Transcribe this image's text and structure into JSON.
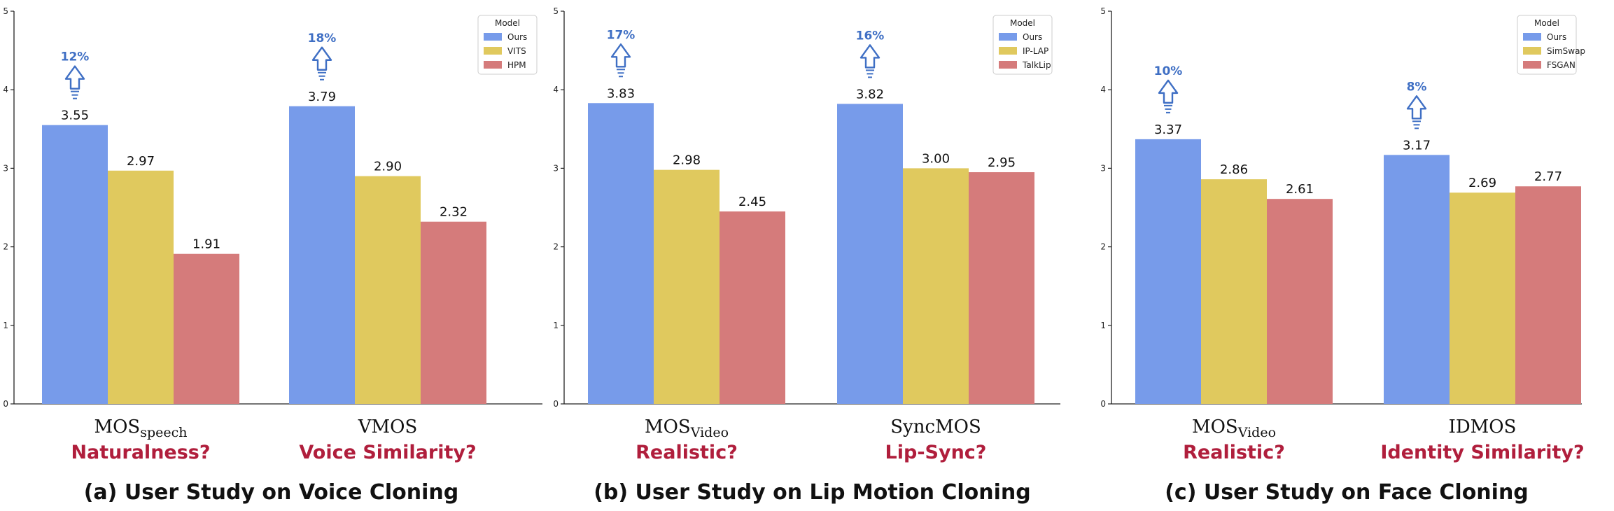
{
  "colors": {
    "ours": "#779bea",
    "second": "#e0c95e",
    "third": "#d57b7b",
    "arrow": "#3f6fc4",
    "question": "#b01e3c",
    "axis": "#222222"
  },
  "chart_data": [
    {
      "type": "bar",
      "caption": "(a) User Study on Voice Cloning",
      "ylim": [
        0,
        5
      ],
      "yticks": [
        "0",
        "1",
        "2",
        "3",
        "4",
        "5"
      ],
      "grid": false,
      "legend": {
        "title": "Model",
        "position": "top-right"
      },
      "categories": [
        {
          "base": "MOS",
          "sub": "speech",
          "question": "Naturalness?"
        },
        {
          "base": "VMOS",
          "sub": "",
          "question": "Voice Similarity?"
        }
      ],
      "series": [
        {
          "name": "Ours",
          "values": [
            3.55,
            3.79
          ],
          "labels": [
            "3.55",
            "3.79"
          ]
        },
        {
          "name": "VITS",
          "values": [
            2.97,
            2.9
          ],
          "labels": [
            "2.97",
            "2.90"
          ]
        },
        {
          "name": "HPM",
          "values": [
            1.91,
            2.32
          ],
          "labels": [
            "1.91",
            "2.32"
          ]
        }
      ],
      "improvements": [
        "12%",
        "18%"
      ]
    },
    {
      "type": "bar",
      "caption": "(b) User Study on Lip Motion Cloning",
      "ylim": [
        0,
        5
      ],
      "yticks": [
        "0",
        "1",
        "2",
        "3",
        "4",
        "5"
      ],
      "grid": false,
      "legend": {
        "title": "Model",
        "position": "top-right"
      },
      "categories": [
        {
          "base": "MOS",
          "sub": "Video",
          "question": "Realistic?"
        },
        {
          "base": "SyncMOS",
          "sub": "",
          "question": "Lip-Sync?"
        }
      ],
      "series": [
        {
          "name": "Ours",
          "values": [
            3.83,
            3.82
          ],
          "labels": [
            "3.83",
            "3.82"
          ]
        },
        {
          "name": "IP-LAP",
          "values": [
            2.98,
            3.0
          ],
          "labels": [
            "2.98",
            "3.00"
          ]
        },
        {
          "name": "TalkLip",
          "values": [
            2.45,
            2.95
          ],
          "labels": [
            "2.45",
            "2.95"
          ]
        }
      ],
      "improvements": [
        "17%",
        "16%"
      ]
    },
    {
      "type": "bar",
      "caption": "(c) User Study on Face Cloning",
      "ylim": [
        0,
        5
      ],
      "yticks": [
        "0",
        "1",
        "2",
        "3",
        "4",
        "5"
      ],
      "grid": false,
      "legend": {
        "title": "Model",
        "position": "top-right"
      },
      "categories": [
        {
          "base": "MOS",
          "sub": "Video",
          "question": "Realistic?"
        },
        {
          "base": "IDMOS",
          "sub": "",
          "question": "Identity Similarity?"
        }
      ],
      "series": [
        {
          "name": "Ours",
          "values": [
            3.37,
            3.17
          ],
          "labels": [
            "3.37",
            "3.17"
          ]
        },
        {
          "name": "SimSwap",
          "values": [
            2.86,
            2.69
          ],
          "labels": [
            "2.86",
            "2.69"
          ]
        },
        {
          "name": "FSGAN",
          "values": [
            2.61,
            2.77
          ],
          "labels": [
            "2.61",
            "2.77"
          ]
        }
      ],
      "improvements": [
        "10%",
        "8%"
      ]
    }
  ]
}
